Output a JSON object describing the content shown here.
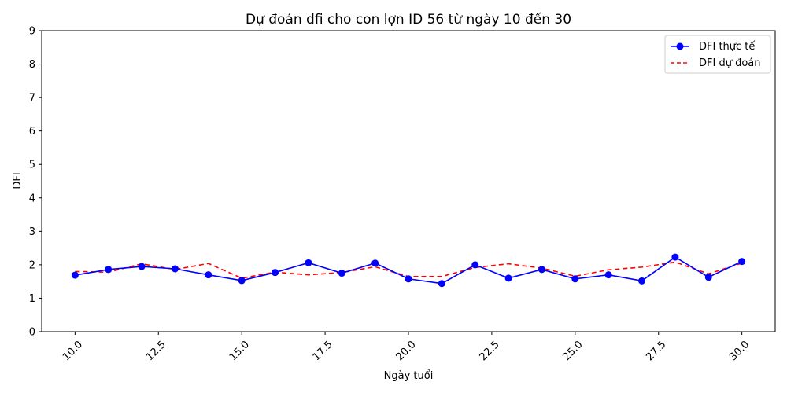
{
  "chart_data": {
    "type": "line",
    "title": "Dự đoán dfi cho con lợn ID 56 từ ngày 10 đến 30",
    "xlabel": "Ngày tuổi",
    "ylabel": "DFI",
    "xlim": [
      9.0,
      31.0
    ],
    "ylim": [
      0,
      9
    ],
    "x_ticks": [
      10.0,
      12.5,
      15.0,
      17.5,
      20.0,
      22.5,
      25.0,
      27.5,
      30.0
    ],
    "x_tick_labels": [
      "10.0",
      "12.5",
      "15.0",
      "17.5",
      "20.0",
      "22.5",
      "25.0",
      "27.5",
      "30.0"
    ],
    "y_ticks": [
      0,
      1,
      2,
      3,
      4,
      5,
      6,
      7,
      8,
      9
    ],
    "y_tick_labels": [
      "0",
      "1",
      "2",
      "3",
      "4",
      "5",
      "6",
      "7",
      "8",
      "9"
    ],
    "grid": false,
    "legend_position": "top-right",
    "x": [
      10,
      11,
      12,
      13,
      14,
      15,
      16,
      17,
      18,
      19,
      20,
      21,
      22,
      23,
      24,
      25,
      26,
      27,
      28,
      29,
      30
    ],
    "series": [
      {
        "name": "DFI thực tế",
        "color": "#0000ff",
        "style": "solid-with-markers",
        "values": [
          1.69,
          1.86,
          1.95,
          1.88,
          1.7,
          1.53,
          1.77,
          2.06,
          1.75,
          2.05,
          1.58,
          1.44,
          2.0,
          1.6,
          1.86,
          1.58,
          1.7,
          1.52,
          2.23,
          1.63,
          2.1
        ]
      },
      {
        "name": "DFI dự đoán",
        "color": "#ff0000",
        "style": "dashed",
        "values": [
          1.8,
          1.78,
          2.03,
          1.86,
          2.04,
          1.6,
          1.78,
          1.7,
          1.77,
          1.94,
          1.65,
          1.65,
          1.92,
          2.03,
          1.9,
          1.66,
          1.85,
          1.93,
          2.08,
          1.73,
          2.05
        ]
      }
    ]
  }
}
